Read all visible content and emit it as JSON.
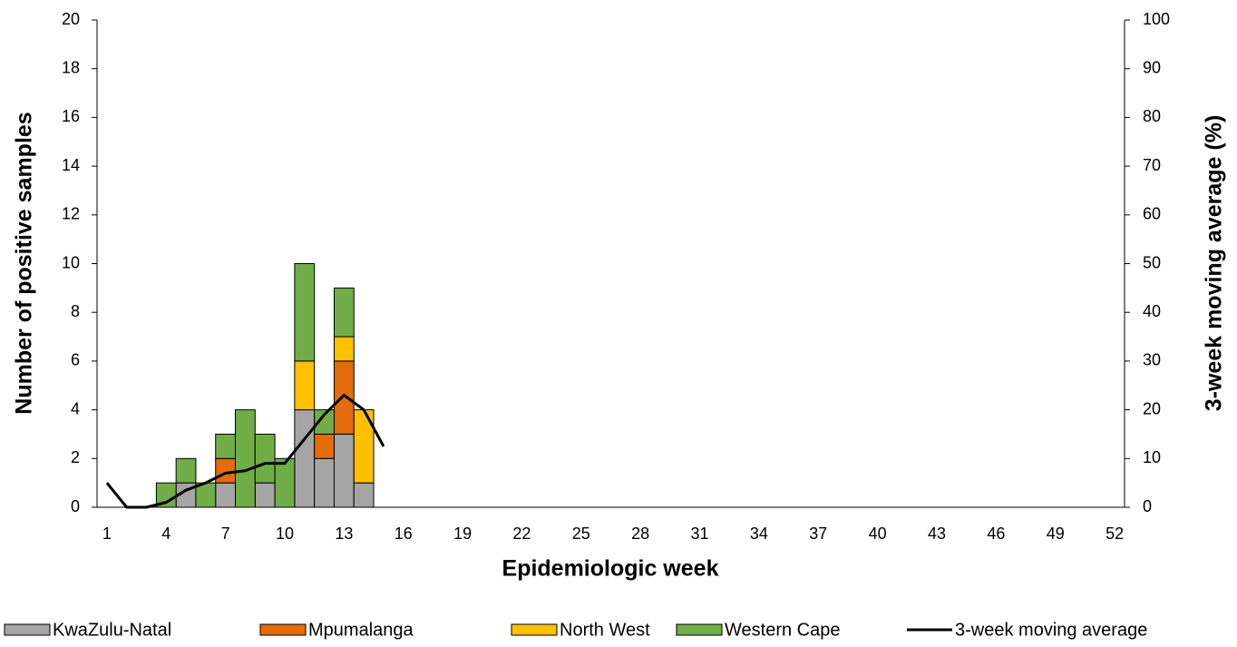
{
  "chart_data": {
    "type": "bar",
    "stacked": true,
    "x_label": "Epidemiologic week",
    "y_label": "Number of  positive samples",
    "y2_label": "3-week moving average (%)",
    "x": [
      1,
      2,
      3,
      4,
      5,
      6,
      7,
      8,
      9,
      10,
      11,
      12,
      13,
      14,
      15,
      16,
      17,
      18,
      19,
      20,
      21,
      22,
      23,
      24,
      25,
      26,
      27,
      28,
      29,
      30,
      31,
      32,
      33,
      34,
      35,
      36,
      37,
      38,
      39,
      40,
      41,
      42,
      43,
      44,
      45,
      46,
      47,
      48,
      49,
      50,
      51,
      52
    ],
    "xlim": [
      0.5,
      52.5
    ],
    "xticks": [
      1,
      4,
      7,
      10,
      13,
      16,
      19,
      22,
      25,
      28,
      31,
      34,
      37,
      40,
      43,
      46,
      49,
      52
    ],
    "ylim": [
      0,
      20
    ],
    "yticks": [
      0,
      2,
      4,
      6,
      8,
      10,
      12,
      14,
      16,
      18,
      20
    ],
    "y2lim": [
      0,
      100
    ],
    "y2ticks": [
      0,
      10,
      20,
      30,
      40,
      50,
      60,
      70,
      80,
      90,
      100
    ],
    "grid": false,
    "legend": "bottom",
    "series": [
      {
        "name": "KwaZulu-Natal",
        "color": "#a5a5a5",
        "values": [
          0,
          0,
          0,
          0,
          1,
          0,
          1,
          0,
          1,
          0,
          4,
          2,
          3,
          1,
          0,
          null,
          null,
          null,
          null,
          null,
          null,
          null,
          null,
          null,
          null,
          null,
          null,
          null,
          null,
          null,
          null,
          null,
          null,
          null,
          null,
          null,
          null,
          null,
          null,
          null,
          null,
          null,
          null,
          null,
          null,
          null,
          null,
          null,
          null,
          null,
          null,
          null
        ]
      },
      {
        "name": "Mpumalanga",
        "color": "#e46c0a",
        "values": [
          0,
          0,
          0,
          0,
          0,
          0,
          1,
          0,
          0,
          0,
          0,
          1,
          3,
          0,
          0,
          null,
          null,
          null,
          null,
          null,
          null,
          null,
          null,
          null,
          null,
          null,
          null,
          null,
          null,
          null,
          null,
          null,
          null,
          null,
          null,
          null,
          null,
          null,
          null,
          null,
          null,
          null,
          null,
          null,
          null,
          null,
          null,
          null,
          null,
          null,
          null,
          null
        ]
      },
      {
        "name": "North West",
        "color": "#ffc000",
        "values": [
          0,
          0,
          0,
          0,
          0,
          0,
          0,
          0,
          0,
          0,
          2,
          0,
          1,
          3,
          0,
          null,
          null,
          null,
          null,
          null,
          null,
          null,
          null,
          null,
          null,
          null,
          null,
          null,
          null,
          null,
          null,
          null,
          null,
          null,
          null,
          null,
          null,
          null,
          null,
          null,
          null,
          null,
          null,
          null,
          null,
          null,
          null,
          null,
          null,
          null,
          null,
          null
        ]
      },
      {
        "name": "Western Cape",
        "color": "#70ad47",
        "values": [
          0,
          0,
          0,
          1,
          1,
          1,
          1,
          4,
          2,
          2,
          4,
          1,
          2,
          0,
          0,
          null,
          null,
          null,
          null,
          null,
          null,
          null,
          null,
          null,
          null,
          null,
          null,
          null,
          null,
          null,
          null,
          null,
          null,
          null,
          null,
          null,
          null,
          null,
          null,
          null,
          null,
          null,
          null,
          null,
          null,
          null,
          null,
          null,
          null,
          null,
          null,
          null
        ]
      },
      {
        "name": "3-week moving average",
        "color": "#000000",
        "type": "line",
        "axis": "y2",
        "values": [
          5,
          0,
          0,
          1,
          3.5,
          5,
          7,
          7.5,
          9,
          9,
          14,
          19,
          23,
          20,
          12.5,
          null,
          null,
          null,
          null,
          null,
          null,
          null,
          null,
          null,
          null,
          null,
          null,
          null,
          null,
          null,
          null,
          null,
          null,
          null,
          null,
          null,
          null,
          null,
          null,
          null,
          null,
          null,
          null,
          null,
          null,
          null,
          null,
          null,
          null,
          null,
          null,
          null
        ]
      }
    ]
  }
}
